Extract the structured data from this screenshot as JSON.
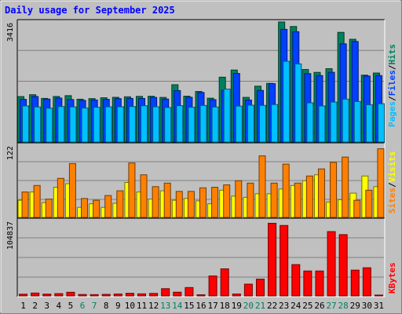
{
  "chart_data": [
    {
      "type": "bar",
      "title": "Daily usage for September 2025",
      "x": [
        "1",
        "2",
        "3",
        "4",
        "5",
        "6",
        "7",
        "8",
        "9",
        "10",
        "11",
        "12",
        "13",
        "14",
        "15",
        "16",
        "17",
        "18",
        "19",
        "20",
        "21",
        "22",
        "23",
        "24",
        "25",
        "26",
        "27",
        "28",
        "29",
        "30",
        "31"
      ],
      "weekend_days": [
        "6",
        "7",
        "13",
        "14",
        "20",
        "21",
        "27",
        "28"
      ],
      "ytick": "3416",
      "ylim": [
        0,
        3416
      ],
      "series": [
        {
          "name": "Hits",
          "values": [
            1294,
            1347,
            1242,
            1297,
            1320,
            1219,
            1236,
            1260,
            1273,
            1287,
            1300,
            1303,
            1270,
            1631,
            1306,
            1439,
            1248,
            1846,
            2049,
            1271,
            1590,
            1670,
            3416,
            3287,
            2064,
            1982,
            2087,
            3121,
            2924,
            1904,
            1964
          ]
        },
        {
          "name": "Files",
          "values": [
            1214,
            1295,
            1223,
            1251,
            1209,
            1186,
            1197,
            1215,
            1236,
            1241,
            1241,
            1271,
            1224,
            1464,
            1274,
            1411,
            1206,
            1469,
            1952,
            1196,
            1469,
            1662,
            3206,
            3138,
            1948,
            1892,
            1984,
            2794,
            2860,
            1878,
            1891
          ]
        },
        {
          "name": "Pages",
          "values": [
            1029,
            999,
            965,
            1011,
            1001,
            969,
            990,
            1004,
            1006,
            1011,
            1033,
            1005,
            984,
            1035,
            991,
            1042,
            998,
            1508,
            1024,
            1050,
            1045,
            1068,
            2298,
            2223,
            1116,
            1028,
            1138,
            1222,
            1154,
            1063,
            1091
          ]
        }
      ]
    },
    {
      "type": "bar",
      "ytick": "122",
      "ylim": [
        0,
        122
      ],
      "series": [
        {
          "name": "Visits",
          "values": [
            29,
            43,
            25,
            51,
            57,
            17,
            23,
            17,
            24,
            59,
            43,
            31,
            45,
            29,
            32,
            28,
            23,
            46,
            36,
            34,
            40,
            40,
            48,
            54,
            62,
            72,
            26,
            30,
            41,
            70,
            52
          ]
        },
        {
          "name": "Sites",
          "values": [
            43,
            54,
            31,
            66,
            91,
            32,
            29,
            37,
            45,
            92,
            72,
            52,
            58,
            44,
            44,
            50,
            51,
            55,
            62,
            58,
            104,
            58,
            90,
            58,
            70,
            82,
            93,
            102,
            29,
            46,
            116
          ]
        }
      ]
    },
    {
      "type": "bar",
      "ytick": "104837",
      "ylim": [
        0,
        104837
      ],
      "series": [
        {
          "name": "KBytes",
          "values": [
            2400,
            4000,
            2500,
            3200,
            5100,
            2000,
            1800,
            2200,
            2700,
            3700,
            2900,
            3500,
            10100,
            5200,
            11700,
            1600,
            27800,
            37700,
            2700,
            16400,
            23400,
            101100,
            98000,
            43600,
            34700,
            34700,
            89500,
            85300,
            35900,
            39200,
            1200
          ]
        }
      ]
    }
  ],
  "legend": {
    "top": [
      "Pages",
      "Files",
      "Hits"
    ],
    "middle": [
      "Sites",
      "Visits"
    ],
    "bottom": [
      "KBytes"
    ]
  },
  "colors": {
    "hits": "#00805c",
    "files": "#0040ff",
    "pages": "#00c0ff",
    "visits": "#ffff00",
    "sites": "#ff8000",
    "kbytes": "#ff0000",
    "panel": "#c0c0c0",
    "background": "#ffffff",
    "title": "#0000ff",
    "weekday_label": "#000000",
    "weekend_label": "#00805c"
  }
}
